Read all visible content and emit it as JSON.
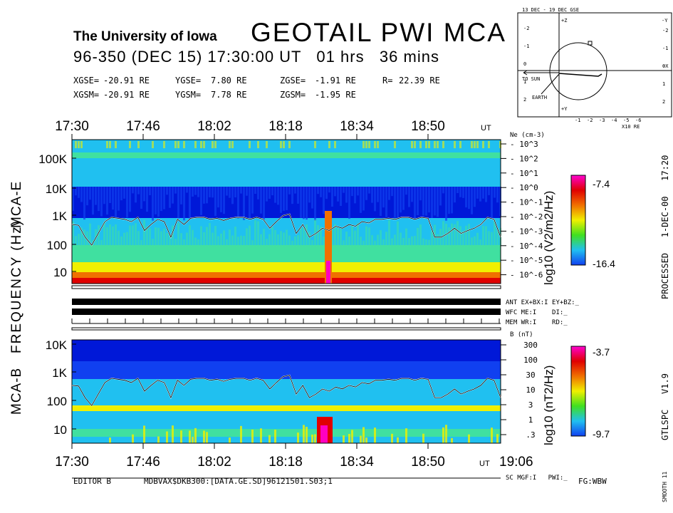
{
  "header": {
    "institution": "The University of Iowa",
    "title": "GEOTAIL PWI MCA",
    "subtitle": "96-350 (DEC 15) 17:30:00 UT   01 hrs   36 mins"
  },
  "coordinates": {
    "gse": {
      "x_label": "XGSE=",
      "x_value": "-20.91 RE",
      "y_label": "YGSE=",
      "y_value": "7.80 RE",
      "z_label": "ZGSE=",
      "z_value": "-1.91 RE",
      "r_label": "R=",
      "r_value": "22.39 RE"
    },
    "gsm": {
      "x_label": "XGSM=",
      "x_value": "-20.91 RE",
      "y_label": "YGSM=",
      "y_value": "7.78 RE",
      "z_label": "ZGSM=",
      "z_value": "-1.95 RE"
    }
  },
  "orbit_inset": {
    "title": "13 DEC - 19 DEC  GSE",
    "to_sun_label": "TO SUN",
    "earth_label": "EARTH",
    "x_ticks": [
      "-1",
      "-2",
      "-3",
      "-4",
      "-5",
      "-6"
    ],
    "y_ticks_left": [
      "-2",
      "-1",
      "0",
      "1",
      "2"
    ],
    "y_ticks_right": [
      "-2",
      "-1",
      "0",
      "1",
      "2"
    ],
    "scale_label": "X10 RE",
    "axis_labels": {
      "top": "+Z",
      "bottom": "+Y",
      "right_top": "-Y",
      "right_mid": "-X"
    }
  },
  "time_axis": {
    "top_labels": [
      "17:30",
      "17:46",
      "18:02",
      "18:18",
      "18:34",
      "18:50"
    ],
    "top_unit": "UT",
    "bottom_labels": [
      "17:30",
      "17:46",
      "18:02",
      "18:18",
      "18:34",
      "18:50"
    ],
    "bottom_unit": "UT",
    "end_label": "19:06"
  },
  "left_labels": {
    "mca_e": "MCA-E",
    "frequency": "FREQUENCY (Hz)",
    "mca_b": "MCA-B"
  },
  "chart_data": [
    {
      "type": "heatmap",
      "name": "MCA-E electric field spectrogram",
      "x_range": [
        "17:30",
        "19:06"
      ],
      "y_scale": "log",
      "y_ticks": [
        "100K",
        "10K",
        "1K",
        "100",
        "10"
      ],
      "y_label": "FREQUENCY (Hz)",
      "right_axis_label": "Ne (cm-3)",
      "right_axis_ticks": [
        "10^3",
        "10^2",
        "10^1",
        "10^0",
        "10^-1",
        "10^-2",
        "10^-3",
        "10^-4",
        "10^-5",
        "10^-6"
      ],
      "colorbar_label": "log10 (V2/m2/Hz)",
      "colorbar_range": [
        -16.4,
        -7.4
      ],
      "colorbar_min_label": "-16.4",
      "colorbar_max_label": "-7.4",
      "overlay_line": "electron plasma frequency",
      "overlay_frequency_hz": [
        400,
        380,
        150,
        80,
        200,
        500,
        700,
        650,
        600,
        500,
        700,
        250,
        400,
        600,
        500,
        150,
        600,
        400,
        650,
        700,
        700,
        600,
        650,
        550,
        650,
        700,
        700,
        600,
        700,
        600,
        300,
        500,
        800,
        900,
        200,
        400,
        150,
        200,
        300,
        250,
        350,
        300,
        400,
        350,
        500,
        450,
        600,
        600,
        650,
        600,
        700,
        700,
        600,
        700,
        650,
        150,
        150,
        200,
        300,
        200,
        250,
        300,
        400,
        700,
        600,
        150
      ]
    },
    {
      "type": "heatmap",
      "name": "MCA-B magnetic field spectrogram",
      "x_range": [
        "17:30",
        "19:06"
      ],
      "y_scale": "log",
      "y_ticks": [
        "10K",
        "1K",
        "100",
        "10"
      ],
      "right_axis_label": "B (nT)",
      "right_axis_ticks": [
        "300",
        "100",
        "30",
        "10",
        "3",
        "1",
        ".3"
      ],
      "colorbar_label": "log10 (nT2/Hz)",
      "colorbar_range": [
        -9.7,
        -3.7
      ],
      "colorbar_min_label": "-9.7",
      "colorbar_max_label": "-3.7",
      "overlay_line": "electron cyclotron frequency"
    }
  ],
  "status_lines": {
    "row1": "ANT EX+BX:I EY+BZ:_",
    "row2": "WFC ME:I    DI:_",
    "row3": "MEM WR:I    RD:_",
    "sc_line": "SC MGF:I   PWI:_"
  },
  "right_margin": {
    "processed": "PROCESSED   1-DEC-00   17:20",
    "version": "GTLSPC   V1.9",
    "smooth": "SMOOTH 11"
  },
  "footer": {
    "editor": "EDITOR B",
    "path": "MDBVAX$DKB300:[DATA.GE.SD]96121501.S03;1",
    "fg": "FG:WBW"
  },
  "colors": {
    "deep_blue": "#0018d8",
    "blue": "#1040f0",
    "cyan": "#20c0f0",
    "green": "#40e0a0",
    "yellow": "#f0f000",
    "orange": "#f07000",
    "red": "#e00000",
    "magenta": "#ff00c0"
  }
}
